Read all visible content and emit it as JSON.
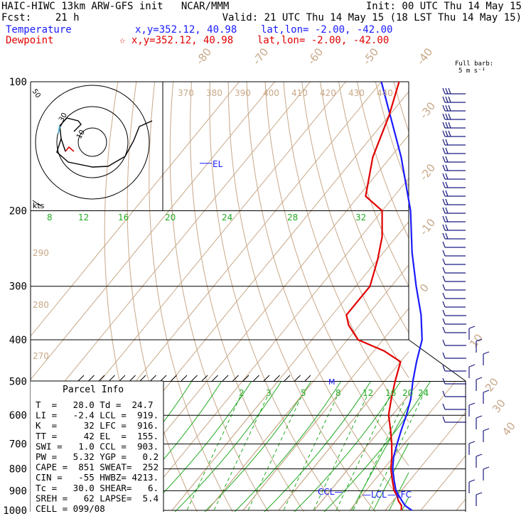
{
  "header": {
    "line1_left": "HAIC-HIWC 13km ARW-GFS init   NCAR/MMM",
    "line1_right": "Init: 00 UTC Thu 14 May 15",
    "line2_left": "Fcst:    21 h",
    "line2_right": "Valid: 21 UTC Thu 14 May 15 (18 LST Thu 14 May 15)",
    "temperature_label": "Temperature",
    "temperature_loc": "x,y=352.12, 40.98    lat,lon= -2.00, -42.00",
    "dewpoint_label": "Dewpoint",
    "dewpoint_loc": "☆ x,y=352.12, 40.98    lat,lon= -2.00, -42.00",
    "barb_legend_1": "Full barb:",
    "barb_legend_2": "5 m s⁻¹"
  },
  "colors": {
    "temperature": "#1a1aff",
    "dewpoint": "#e00000",
    "mixing_ratio": "#22aa22",
    "adiabat": "#c8a888",
    "barb": "#1a1a80"
  },
  "chart_data": {
    "type": "line",
    "skew_t": true,
    "y_axis": "pressure (hPa), log scale, inverted",
    "ylim": [
      1000,
      100
    ],
    "pressure_ticks": [
      100,
      200,
      300,
      400,
      500,
      600,
      700,
      800,
      900,
      1000
    ],
    "isotherm_ticks": [
      "-80",
      "-70",
      "-60",
      "-50",
      "-40",
      "-30",
      "-20",
      "-10",
      "0",
      "10",
      "20",
      "30",
      "40"
    ],
    "theta_labels": [
      "370",
      "380",
      "390",
      "400",
      "410",
      "420",
      "430",
      "440",
      "290",
      "280",
      "270"
    ],
    "mixing_ratio_upper": [
      "8",
      "12",
      "16",
      "20",
      "24",
      "28",
      "32"
    ],
    "mixing_ratio_lower": [
      "2",
      "3",
      "5",
      "8",
      "12",
      "16",
      "20",
      "24"
    ],
    "series": [
      {
        "name": "Temperature",
        "points": [
          [
            1000,
            27.5
          ],
          [
            975,
            24.5
          ],
          [
            950,
            22.5
          ],
          [
            925,
            20.5
          ],
          [
            900,
            18.5
          ],
          [
            850,
            15.5
          ],
          [
            800,
            12.5
          ],
          [
            750,
            10
          ],
          [
            700,
            8
          ],
          [
            650,
            6
          ],
          [
            600,
            4
          ],
          [
            550,
            1.5
          ],
          [
            500,
            -2
          ],
          [
            450,
            -5.5
          ],
          [
            400,
            -9
          ],
          [
            350,
            -15
          ],
          [
            300,
            -23
          ],
          [
            250,
            -32
          ],
          [
            200,
            -42
          ],
          [
            150,
            -57
          ],
          [
            100,
            -80
          ]
        ]
      },
      {
        "name": "Dewpoint",
        "points": [
          [
            1000,
            24.5
          ],
          [
            975,
            23.5
          ],
          [
            950,
            21.5
          ],
          [
            925,
            20
          ],
          [
            900,
            18
          ],
          [
            850,
            15
          ],
          [
            800,
            12
          ],
          [
            750,
            9.5
          ],
          [
            700,
            6.5
          ],
          [
            650,
            3
          ],
          [
            600,
            -1
          ],
          [
            550,
            -4
          ],
          [
            500,
            -7
          ],
          [
            450,
            -10
          ],
          [
            425,
            -17
          ],
          [
            400,
            -27
          ],
          [
            370,
            -33
          ],
          [
            350,
            -36
          ],
          [
            300,
            -36
          ],
          [
            260,
            -40
          ],
          [
            230,
            -44
          ],
          [
            200,
            -50
          ],
          [
            185,
            -58
          ],
          [
            150,
            -65
          ],
          [
            120,
            -70
          ],
          [
            100,
            -75
          ]
        ]
      }
    ],
    "level_labels": [
      "EL",
      "LFC",
      "LCL",
      "CCL",
      "M"
    ],
    "hodograph": {
      "axis_unit": "kts",
      "ring_labels": [
        "10",
        "30",
        "50"
      ]
    }
  },
  "parcel_info": {
    "title": "Parcel Info",
    "rows": [
      "T  =   28.0 Td =  24.7",
      "LI =   -2.4 LCL =  919.",
      "K  =     32 LFC =  916.",
      "TT =     42 EL  =  155.",
      "SWI =   1.0 CCL =  903.",
      "PW =   5.32 YGP =   0.2",
      "CAPE =  851 SWEAT=  252",
      "CIN =   -55 HWBZ= 4213.",
      "Tc =   30.0 SHEAR=   6.",
      "SREH =   62 LAPSE=  5.4",
      "CELL = 099/08"
    ]
  }
}
